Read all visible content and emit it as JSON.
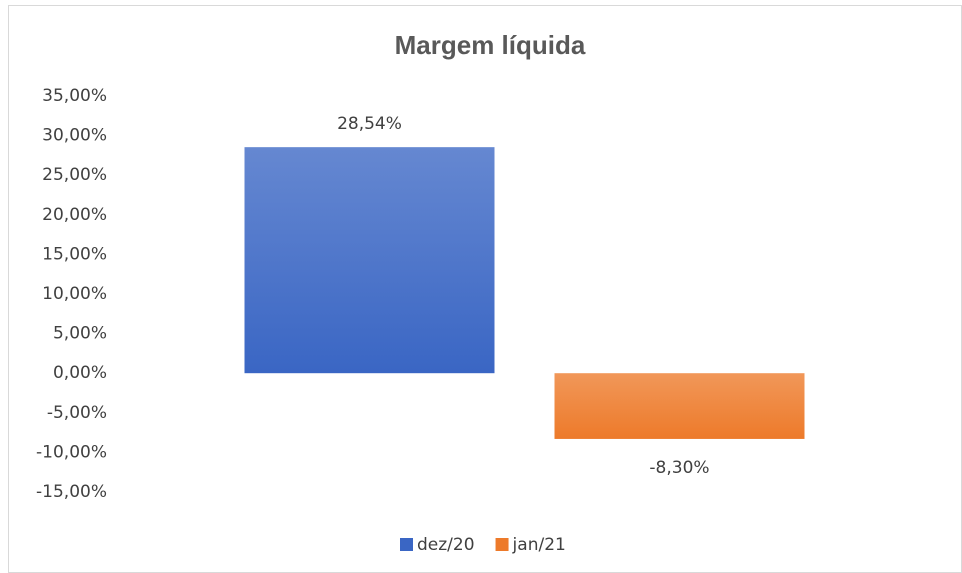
{
  "chart_data": {
    "type": "bar",
    "title": "Margem líquida",
    "categories": [
      null
    ],
    "series": [
      {
        "name": "dez/20",
        "color": "#3a66c4",
        "values": [
          28.54
        ],
        "value_labels": [
          "28,54%"
        ]
      },
      {
        "name": "jan/21",
        "color": "#ed7a2a",
        "values": [
          -8.3
        ],
        "value_labels": [
          "-8,30%"
        ]
      }
    ],
    "ylim": [
      -15,
      35
    ],
    "yticks": [
      {
        "value": -15,
        "label": "-15,00%"
      },
      {
        "value": -10,
        "label": "-10,00%"
      },
      {
        "value": -5,
        "label": "-5,00%"
      },
      {
        "value": 0,
        "label": "0,00%"
      },
      {
        "value": 5,
        "label": "5,00%"
      },
      {
        "value": 10,
        "label": "10,00%"
      },
      {
        "value": 15,
        "label": "15,00%"
      },
      {
        "value": 20,
        "label": "20,00%"
      },
      {
        "value": 25,
        "label": "25,00%"
      },
      {
        "value": 30,
        "label": "30,00%"
      },
      {
        "value": 35,
        "label": "35,00%"
      }
    ],
    "grid": false,
    "legend": "bottom"
  }
}
